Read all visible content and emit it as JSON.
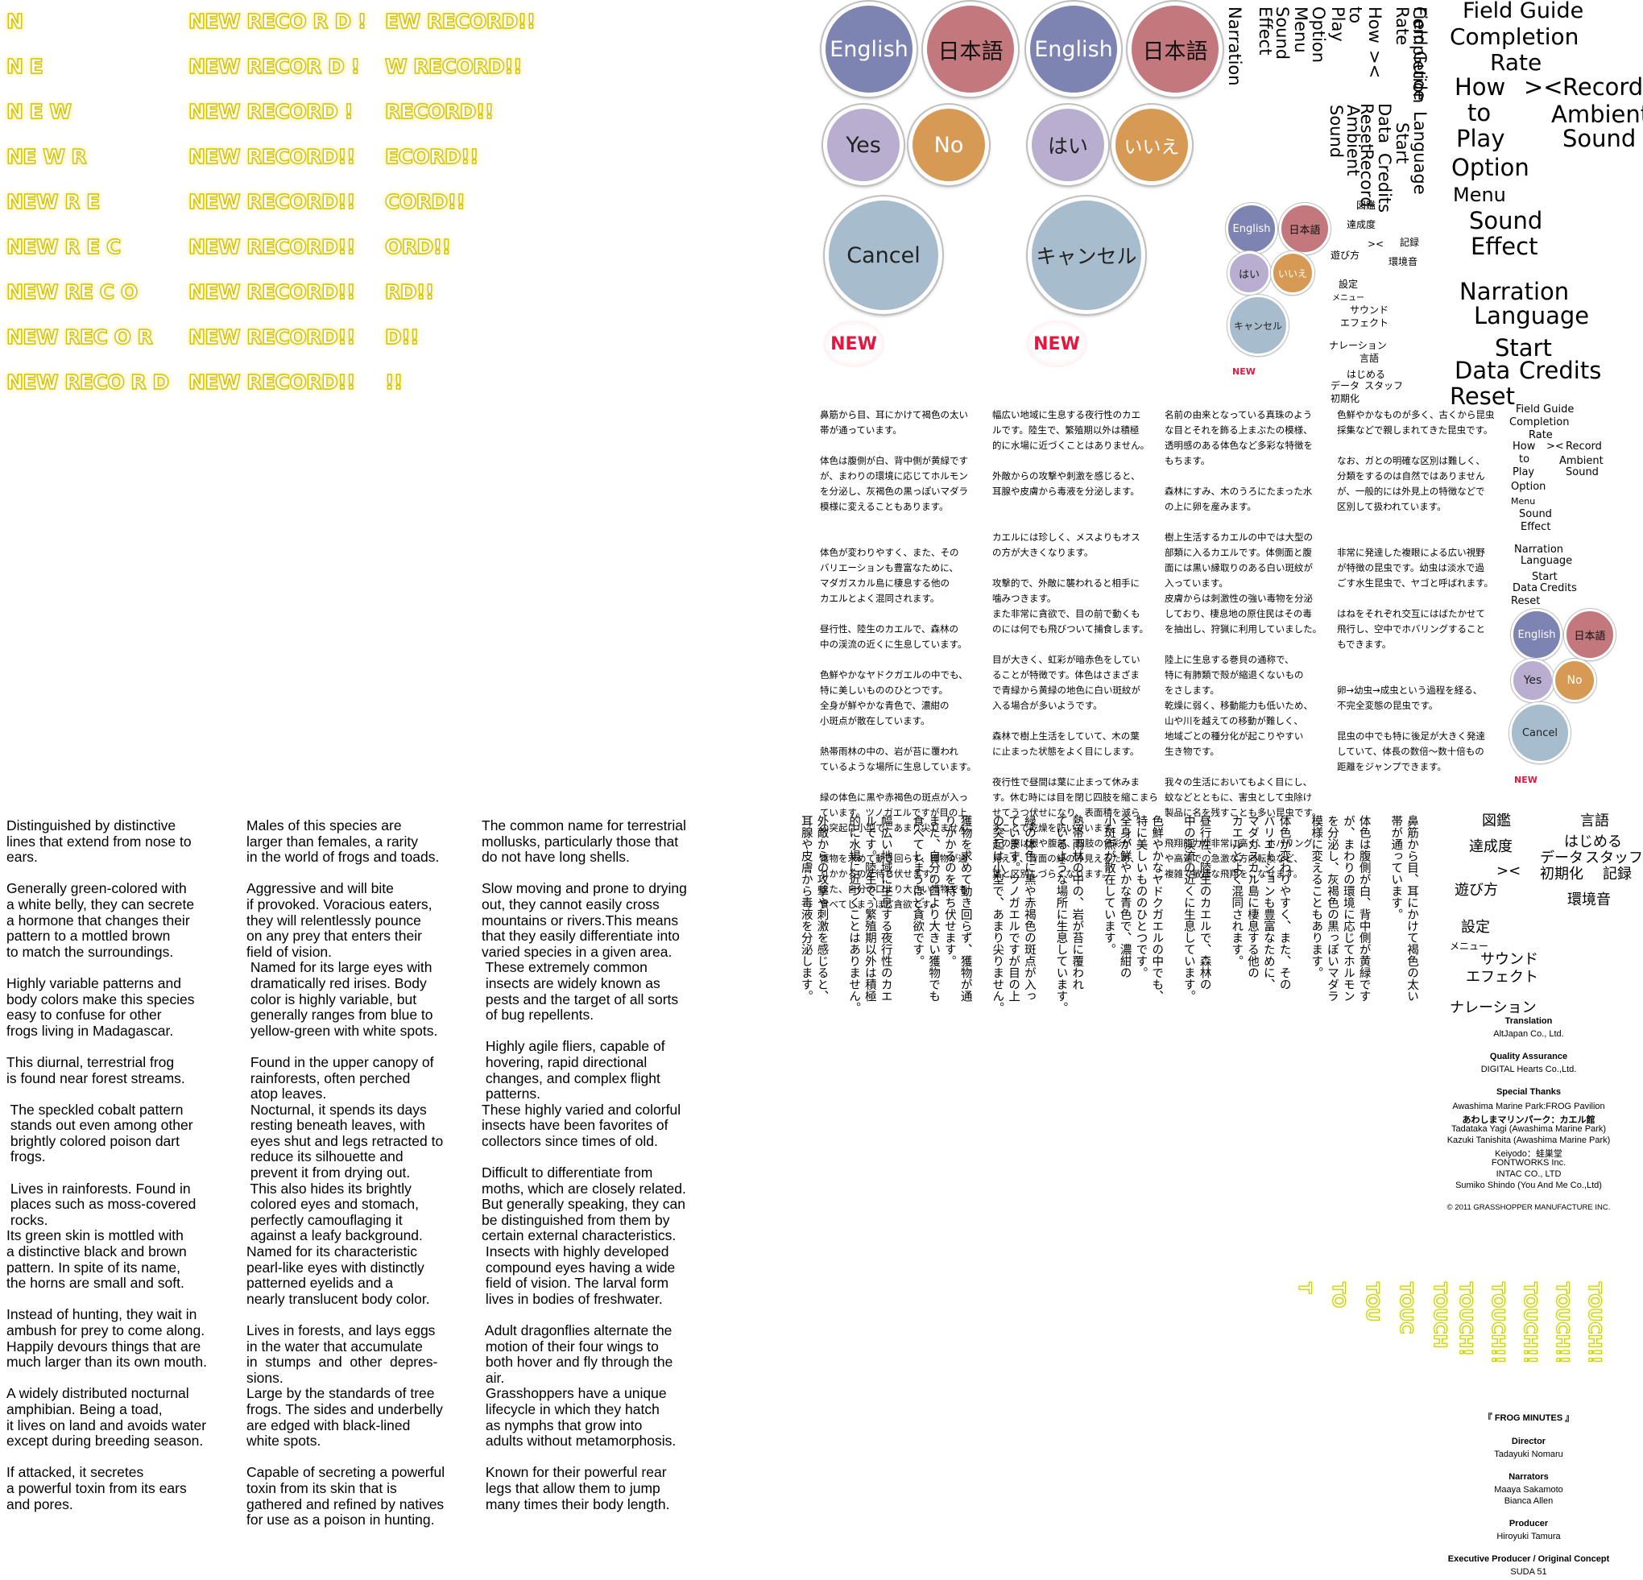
{
  "new_record_frames": {
    "col_a": [
      "N",
      "N E",
      "N E W",
      "NE W R",
      "NEW R E",
      "NEW R E C",
      "NEW RE C O",
      "NEW REC O R",
      "NEW RECO R D"
    ],
    "col_b": [
      "NEW RECO R D !",
      "NEW RECOR D !",
      "NEW RECORD !",
      "NEW RECORD!!",
      "NEW RECORD!!",
      "NEW RECORD!!",
      "NEW RECORD!!",
      "NEW RECORD!!",
      "NEW RECORD!!"
    ],
    "col_c": [
      "EW RECORD!!",
      "W RECORD!!",
      "RECORD!!",
      "ECORD!!",
      "CORD!!",
      "ORD!!",
      "RD!!",
      "D!!",
      "!!"
    ]
  },
  "buttons_large": {
    "english_1": "English",
    "japanese_1": "日本語",
    "english_2": "English",
    "japanese_2": "日本語",
    "yes": "Yes",
    "no": "No",
    "hai": "はい",
    "iie": "いいえ",
    "cancel": "Cancel",
    "cancel_jp": "キャンセル",
    "new_1": "NEW",
    "new_2": "NEW"
  },
  "buttons_small": {
    "english": "English",
    "japanese": "日本語",
    "hai": "はい",
    "iie": "いいえ",
    "cancel": "キャンセル",
    "new": "NEW"
  },
  "buttons_small_en": {
    "english": "English",
    "japanese": "日本語",
    "yes": "Yes",
    "no": "No",
    "cancel": "Cancel",
    "new": "NEW"
  },
  "vertical_labels": [
    "Narration",
    "Sound Effect",
    "Menu",
    "Option",
    "Play",
    "to",
    "How",
    "><",
    "Completion Rate",
    "Data",
    "Start",
    "Reset",
    "Record",
    "Ambient Sound",
    "Field Guide",
    "Language",
    "Credits"
  ],
  "menu_large": {
    "field_guide": "Field Guide",
    "completion_rate": "Completion",
    "rate": "Rate",
    "how": "How",
    "arrows": "><",
    "record": "Record",
    "to": "to",
    "ambient": "Ambient",
    "play": "Play",
    "sound": "Sound",
    "option": "Option",
    "menu": "Menu",
    "sound_effect_1": "Sound",
    "effect": "Effect",
    "narration": "Narration",
    "language": "Language",
    "start": "Start",
    "data": "Data",
    "credits": "Credits",
    "reset": "Reset"
  },
  "menu_small": {
    "field_guide": "Field Guide",
    "completion": "Completion",
    "rate": "Rate",
    "how": "How",
    "arrows": "><",
    "record": "Record",
    "to": "to",
    "ambient": "Ambient",
    "play": "Play",
    "sound": "Sound",
    "option": "Option",
    "menu": "Menu",
    "sound_effect": "Sound",
    "effect": "Effect",
    "narration": "Narration",
    "language": "Language",
    "start": "Start",
    "data": "Data",
    "credits": "Credits",
    "reset": "Reset"
  },
  "menu_jp_small": {
    "zukan": "図鑑",
    "tasseido": "達成度",
    "arrows": "><",
    "kiroku": "記録",
    "asobikata": "遊び方",
    "kankyouon": "環境音",
    "settei": "設定",
    "menu": "メニュー",
    "sound": "サウンド",
    "effect": "エフェクト",
    "narration": "ナレーション",
    "gengo": "言語",
    "hajimeru": "はじめる",
    "data": "データ",
    "staff": "スタッフ",
    "shokika": "初期化"
  },
  "menu_jp_large": {
    "zukan": "図鑑",
    "gengo": "言語",
    "tasseido": "達成度",
    "hajimeru": "はじめる",
    "data": "データ",
    "staff": "スタッフ",
    "arrows": "><",
    "shokika": "初期化",
    "kiroku": "記録",
    "asobikata": "遊び方",
    "kankyouon": "環境音",
    "settei": "設定",
    "menu": "メニュー",
    "sound": "サウンド",
    "effect": "エフェクト",
    "narration": "ナレーション"
  },
  "jp_col1": "鼻筋から目、耳にかけて褐色の太い\n帯が通っています。\n\n体色は腹側が白、背中側が黄緑です\nが、まわりの環境に応じてホルモン\nを分泌し、灰褐色の黒っぽいマダラ\n模様に変えることもあります。\n\n\n体色が変わりやすく、また、その\nバリエーションも豊富なために、\nマダガスカル島に棲息する他の\nカエルとよく混同されます。\n\n昼行性、陸生のカエルで、森林の\n中の渓流の近くに生息しています。\n\n色鮮やかなヤドクガエルの中でも、\n特に美しいもののひとつです。\n全身が鮮やかな青色で、濃紺の\n小斑点が散在しています。\n\n熱帯雨林の中の、岩が苔に覆われ\nているような場所に生息しています。\n\n緑の体色に黒や赤褐色の斑点が入っ\nています。ツノガエルですが目の上\nの突起は小型で、あまり尖りません。\n\n獲物を求めて動き回らず、獲物が通\nりかかるのを待ち伏せます。\nまた、自分の口より大きい獲物でも\n食べてしまうほど貪欲です。",
  "jp_col2": "幅広い地域に生息する夜行性のカエ\nルです。陸生で、繁殖期以外は積極\n的に水場に近づくことはありません。\n\n外敵からの攻撃や刺激を感じると、\n耳腺や皮膚から毒液を分泌します。\n\n\nカエルには珍しく、メスよりもオス\nの方が大きくなります。\n\n攻撃的で、外敵に襲われると相手に\n噛みつきます。\nまた非常に貪欲で、目の前で動くも\nのには何でも飛びついて捕食します。\n\n目が大きく、虹彩が暗赤色をしてい\nることが特徴です。体色はさまざま\nで青緑から黄緑の地色に白い斑紋が\n入る場合が多いようです。\n\n森林で樹上生活をしていて、木の葉\nに止まった状態をよく目にします。\n\n夜行性で昼間は葉に止まって休みま\nす。休む時には目を閉じ四肢を縮こまら\nせてうつ伏せになり、表面積を減ら\nすことで乾燥を防いでいます。\nその際は眼や腹部、四肢の色彩が\n見えず、背面の緑のみ見えるため、\n葉と区別しづらくなります。",
  "jp_col3": "名前の由来となっている真珠のよう\nな目とそれを飾る上まぶたの模様、\n透明感のある体色など多彩な特徴を\nもちます。\n\n森林にすみ、木のうろにたまった水\nの上に卵を産みます。\n\n樹上生活するカエルの中では大型の\n部類に入るカエルです。体側面と腹\n面には黒い縁取りのある白い斑紋が\n入っています。\n皮膚からは刺激性の強い毒物を分泌\nしており、棲息地の原住民はその毒\nを抽出し、狩猟に利用していました。\n\n陸上に生息する巻貝の通称で、\n特に有肺類で殻が縮退くないもの\nをさします。\n乾燥に弱く、移動能力も低いため、\n山や川を越えての移動が難しく、\n地域ごとの種分化が起こりやすい\n生き物です。\n\n我々の生活においてもよく目にし、\n蚊などとともに、害虫として虫除け\n製品に名を残すことも多い昆虫です。\n\n飛翔能力が非常に高く、ホバリング\nや高速での急激な方向転換など、\n複雑で敏捷な飛翔をこなせます。",
  "jp_col4": "色鮮やかなものが多く、古くから昆虫\n採集などで親しまれてきた昆虫です。\n\nなお、ガとの明確な区別は難しく、\n分類をするのは自然ではありません\nが、一般的には外見上の特徴などで\n区別して扱われています。\n\n\n非常に発達した複眼による広い視野\nが特徴の昆虫です。幼虫は淡水で過\nごす水生昆虫で、ヤゴと呼ばれます。\n\nはねをそれぞれ交互にはばたかせて\n飛行し、空中でホバリングすること\nもできます。\n\n\n卵→幼虫→成虫という過程を経る、\n不完全変態の昆虫です。\n\n昆虫の中でも特に後足が大きく発達\nしていて、体長の数倍〜数十倍もの\n距離をジャンプできます。",
  "en_col1": "Distinguished by distinctive\nlines that extend from nose to\nears.\n\nGenerally green-colored with\na white belly, they can secrete\na hormone that changes their\npattern to a mottled brown\nto match the surroundings.\n\nHighly variable patterns and\nbody colors make this species\neasy to confuse for other\nfrogs living in Madagascar.\n\nThis diurnal, terrestrial frog\nis found near forest streams.\n\n The speckled cobalt pattern\n stands out even among other\n brightly colored poison dart\n frogs.\n\n Lives in rainforests. Found in\n places such as moss-covered\n rocks.\nIts green skin is mottled with\na distinctive black and brown\npattern. In spite of its name,\nthe horns are small and soft.\n\nInstead of hunting, they wait in\nambush for prey to come along.\nHappily devours things that are\nmuch larger than its own mouth.\n\nA widely distributed nocturnal\namphibian. Being a toad,\nit lives on land and avoids water\nexcept during breeding season.\n\nIf attacked, it secretes\na powerful toxin from its ears\nand pores.",
  "en_col2": "Males of this species are\nlarger than females, a rarity\nin the world of frogs and toads.\n\nAggressive and will bite\nif provoked. Voracious eaters,\nthey will relentlessly pounce\non any prey that enters their\nfield of vision.\n Named for its large eyes with\n dramatically red irises. Body\n color is highly variable, but\n generally ranges from blue to\n yellow-green with white spots.\n\n Found in the upper canopy of\n rainforests, often perched\n atop leaves.\n Nocturnal, it spends its days\n resting beneath leaves, with\n eyes shut and legs retracted to\n reduce its silhouette and\n prevent it from drying out.\n This also hides its brightly\n colored eyes and stomach,\n perfectly camouflaging it\n against a leafy background.\nNamed for its characteristic\npearl-like eyes with distinctly\npatterned eyelids and a\nnearly translucent body color.\n\nLives in forests, and lays eggs\nin the water that accumulate\nin  stumps  and  other  depres-\nsions.\nLarge by the standards of tree\nfrogs. The sides and underbelly\nare edged with black-lined\nwhite spots.\n\nCapable of secreting a powerful\ntoxin from its skin that is\ngathered and refined by natives\nfor use as a poison in hunting.",
  "en_col3": "The common name for terrestrial\nmollusks, particularly those that\ndo not have long shells.\n\nSlow moving and prone to drying\nout, they cannot easily cross\nmountains or rivers.This means\nthat they easily differentiate into\nvaried species in a given area.\n These extremely common\n insects are widely known as\n pests and the target of all sorts\n of bug repellents.\n\n Highly agile fliers, capable of\n hovering, rapid directional\n changes, and complex flight\n patterns.\nThese highly varied and colorful\ninsects have been favorites of\ncollectors since times of old.\n\nDifficult to differentiate from\nmoths, which are closely related.\nBut generally speaking, they can\nbe distinguished from them by\ncertain external characteristics.\n Insects with highly developed\n compound eyes having a wide\n field of vision. The larval form\n lives in bodies of freshwater.\n\n Adult dragonflies alternate the\n motion of their four wings to\n both hover and fly through the\n air.\n Grasshoppers have a unique\n lifecycle in which they hatch\n as nymphs that grow into\n adults without metamorphosis.\n\n Known for their powerful rear\n legs that allow them to jump\n many times their body length.",
  "vjp_col1": "鼻筋から目、耳にかけて褐色の太い\n帯が通っています。\n\n体色は腹側が白、背中側が黄緑です\nが、まわりの環境に応じてホルモン\nを分泌し、灰褐色の黒っぽいマダラ\n模様に変えることもあります。\n\n体色が変わりやすく、また、その\nバリエーションも豊富なために、\nマダガスカル島に棲息する他の\nカエルとよく混同されます。\n\n昼行性、陸生のカエルで、森林の\n中の渓流の近くに生息しています。\n\n色鮮やかなヤドクガエルの中でも、\n特に美しいもののひとつです。\n全身が鮮やかな青色で、濃紺の\n小斑点が散在しています。\n\n熱帯雨林の中の、岩が苔に覆われ\nているような場所に生息しています。\n\n緑の体色に黒や赤褐色の斑点が入っ\nています。ツノガエルですが目の上\nの突起は小型で、あまり尖りません。\n\n獲物を求めて動き回らず、獲物が通\nりかかるのを待ち伏せます。\nまた、自分の口より大きい獲物でも\n食べてしまうほど貪欲です。\n\n幅広い地域に生息する夜行性のカエ\nルです。陸生で、繁殖期以外は積極\n的に水場に近づくことはありません。\n\n外敵からの攻撃や刺激を感じると、\n耳腺や皮膚から毒液を分泌します。",
  "vjp_col2": "カエルには珍しく、メスよりもオス\nの方が大きくなります。\n\n攻撃的で、外敵に襲われると相手に\n噛みつきます。\nまた非常に貪欲で、目の前で動くも\nのには何でも飛びついて捕食します。\n\n目が大きく、虹彩が暗赤色をしてい\nることが特徴です。体色はさまざま\nで青緑から黄緑の地色に白い斑紋が\n入る場合が多いようです。\n\n森林で樹上生活をしていて、木の葉\nに止まった状態をよく目にします。\n\n夜行性で昼間は葉に止まって休みま\nす。休む時には目を閉じ四肢を縮こまら\nせてうつ伏せになり、表面積を減ら\nすことで乾燥を防いでいます。\nその際は眼や腹部、四肢の色彩が\n見えず、背面の緑のみ見えるため、\n葉と区別しづらくなります。\n\n名前の由来となっている真珠のよう\nな目とそれを飾る上まぶたの模様、\n透明感のある体色など多彩な特徴を\nもちます。\n\n森林にすみ、木のうろにたまった水\nの上に卵を産みます。\n\n樹上生活するカエルの中では大型の\n部類に入るカエルです。体側面と腹\n面には黒い縁取りのある白い斑紋が\n入っています。\n皮膚からは刺激性の強い毒物を分泌\nしており、棲息地の原住民はその毒\nを抽出し、狩猟に利用していました。",
  "vjp_col3": "陸上に生息する巻貝の通称で、\n特に有肺類で殻が縮退くないもの\nをさします。\n乾燥に弱く、移動能力も低いため、\n山や川を越えての移動が難しく、\n地域ごとの種分化が起こりやすい\n生き物です。\n\n我々の生活においてもよく目にし、\n蚊などとともに、害虫として虫除け\n製品に名を残すことも多い昆虫です。\n\n飛翔能力が非常に高く、ホバリング\nや高速での急激な方向転換など、\n複雑で敏捷な飛翔をこなせます。\n\n色鮮やかなものが多く、古くから昆虫\n採集などで親しまれてきた昆虫です。\n\nなお、ガとの明確な区別は難しく、\n分類をするのは自然ではありません\nが、一般的には外見上の特徴などで\n区別して扱われています。\n\n非常に発達した複眼による広い視野\nが特徴の昆虫です。幼虫は淡水で過\nごす水生昆虫で、ヤゴと呼ばれます。\n\nはねをそれぞれ交互にはばたかせて\n飛行し、空中でホバリングすること\nもできます。\n\n卵→幼虫→成虫という過程を経る、\n不完全変態の昆虫です。\n\n昆虫の中でも特に後足が大きく発達\nしていて、体長の数倍〜数十倍もの\n距離をジャンプできます。",
  "credits": {
    "translation_h": "Translation",
    "translation": "AltJapan Co., Ltd.",
    "qa_h": "Quality Assurance",
    "qa": "DIGITAL Hearts Co.,Ltd.",
    "thanks_h": "Special Thanks",
    "thanks_1": "Awashima Marine Park:FROG Pavilion",
    "thanks_2": "あわしまマリンパーク：カエル館",
    "thanks_3": "Tadataka Yagi (Awashima Marine Park)",
    "thanks_4": "Kazuki Tanishita (Awashima Marine Park)",
    "thanks_5": "Keiyodo：蛙巣堂",
    "thanks_6": "FONTWORKS Inc.",
    "thanks_7": "INTAC CO., LTD",
    "thanks_8": "Sumiko Shindo (You And Me Co.,Ltd)",
    "copyright": "© 2011 GRASSHOPPER MANUFACTURE INC.",
    "title": "『 FROG MINUTES 』",
    "director_h": "Director",
    "director": "Tadayuki Nomaru",
    "narrators_h": "Narrators",
    "narrator_1": "Maaya Sakamoto",
    "narrator_2": "Bianca Allen",
    "producer_h": "Producer",
    "producer": "Hiroyuki Tamura",
    "exec_h": "Executive Producer / Original Concept",
    "exec": "SUDA 51"
  },
  "touch_frames": [
    "T",
    "TO",
    "TOU",
    "TOUC",
    "TOUCH",
    "TOUCH!",
    "TOUCH!!",
    "TOUCH!!",
    "TOUCH!!",
    "TOUCH!!"
  ]
}
